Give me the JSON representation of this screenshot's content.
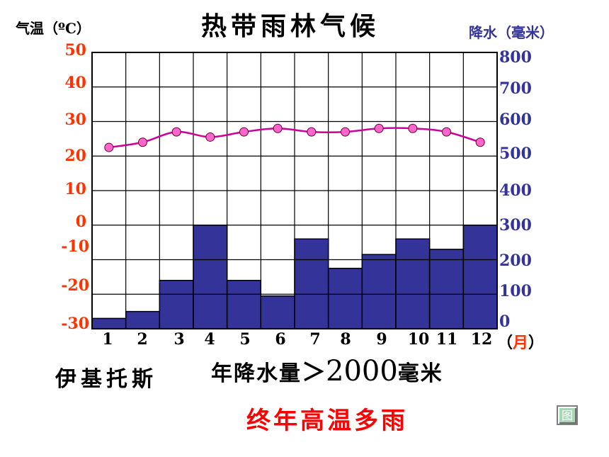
{
  "title": "热带雨林气候",
  "left_unit_label": "气温（ºC）",
  "right_unit_label": "降水（毫米）",
  "left_axis_ticks": [
    "50",
    "40",
    "30",
    "20",
    "10",
    "0",
    "-10",
    "-20",
    "-30"
  ],
  "right_axis_ticks": [
    "800",
    "700",
    "600",
    "500",
    "400",
    "300",
    "200",
    "100",
    "0"
  ],
  "x_unit_label": "（月）",
  "place_name": "伊基托斯",
  "annual_precip_prefix": "年降水量＞",
  "annual_precip_value": "2000",
  "annual_precip_unit": "毫米",
  "conclusion": "终年高温多雨",
  "figure_button_label": "图",
  "colors": {
    "precip_bar": "#333399",
    "temp_line": "#cc0099",
    "temp_marker": "#ff66cc",
    "left_ticks": "#ff3300",
    "right_ticks": "#33339a",
    "conclusion": "#ff0000"
  },
  "chart_data": {
    "type": "bar+line",
    "title": "热带雨林气候",
    "x": [
      "1",
      "2",
      "3",
      "4",
      "5",
      "6",
      "7",
      "8",
      "9",
      "10",
      "11",
      "12"
    ],
    "xlabel": "（月）",
    "grid": true,
    "series": [
      {
        "type": "bar",
        "axis": "right",
        "ylabel": "降水（毫米）",
        "ylim": [
          0,
          800
        ],
        "values": [
          30,
          50,
          140,
          300,
          140,
          95,
          260,
          175,
          215,
          260,
          230,
          300
        ]
      },
      {
        "type": "line",
        "axis": "left",
        "ylabel": "气温（ºC）",
        "ylim": [
          -30,
          50
        ],
        "values": [
          22.5,
          24,
          27,
          25.5,
          27,
          28,
          27,
          27,
          28,
          28,
          27,
          24
        ]
      }
    ]
  }
}
